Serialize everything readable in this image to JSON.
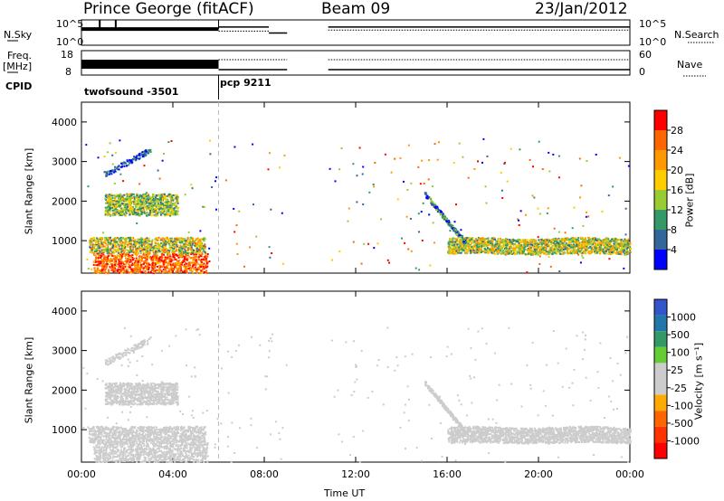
{
  "header": {
    "station": "Prince George (fitACF)",
    "beam": "Beam 09",
    "date": "23/Jan/2012"
  },
  "left_labels": {
    "nsky": "N.Sky",
    "freq_line1": "Freq.",
    "freq_line2": "[MHz]",
    "cpid": "CPID"
  },
  "right_labels": {
    "nsearch": "N.Search",
    "nave": "Nave"
  },
  "cpid_labels": [
    "twofsound -3501",
    "pcp 9211"
  ],
  "chart_data": [
    {
      "type": "line",
      "name": "noise",
      "y_ticks_left": [
        "10^5",
        "10^0"
      ],
      "y_ticks_right": [
        "10^5",
        "10^0"
      ],
      "series": [
        {
          "id": "nsky",
          "segments": [
            [
              0.0,
              6.0,
              3.2
            ],
            [
              6.0,
              8.2,
              3.6
            ],
            [
              8.2,
              9.0,
              2.4
            ],
            [
              10.8,
              24.0,
              3.6
            ]
          ]
        },
        {
          "id": "nsearch",
          "segments": [
            [
              6.0,
              8.2,
              2.8
            ],
            [
              10.8,
              24.0,
              3.0
            ]
          ]
        }
      ]
    },
    {
      "type": "line",
      "name": "frequency-nave",
      "y_ticks_left": [
        "18",
        "8"
      ],
      "y_ticks_right": [
        "60",
        "0"
      ],
      "series": [
        {
          "id": "freq",
          "segments": [
            [
              0.0,
              6.0,
              13.0
            ],
            [
              6.0,
              9.0,
              10.0
            ],
            [
              10.8,
              24.0,
              10.0
            ]
          ]
        },
        {
          "id": "nave",
          "segments": [
            [
              6.0,
              9.0,
              35.0
            ],
            [
              10.8,
              24.0,
              35.0
            ]
          ]
        }
      ]
    },
    {
      "type": "heatmap",
      "name": "power",
      "xlim": [
        0,
        24
      ],
      "ylim": [
        180,
        4500
      ],
      "y_ticks": [
        "4000",
        "3000",
        "2000",
        "1000"
      ],
      "ylabel": "Slant Range [km]",
      "colorbar_label": "Power [dB]",
      "colorbar_ticks": [
        "28",
        "24",
        "20",
        "16",
        "12",
        "8",
        "4"
      ],
      "colorbar_colors": [
        "#ff0000",
        "#ff6600",
        "#ff9900",
        "#ffcc00",
        "#99cc33",
        "#339966",
        "#336699",
        "#0000ff"
      ],
      "regions": [
        {
          "t0": 0.5,
          "t1": 5.5,
          "r0": 200,
          "r1": 700,
          "level": 0.9
        },
        {
          "t0": 0.3,
          "t1": 5.4,
          "r0": 700,
          "r1": 1100,
          "level": 0.6
        },
        {
          "t0": 1.0,
          "t1": 4.2,
          "r0": 1650,
          "r1": 2200,
          "level": 0.45
        },
        {
          "t0": 16.0,
          "t1": 24.0,
          "r0": 650,
          "r1": 1100,
          "level": 0.55
        }
      ]
    },
    {
      "type": "heatmap",
      "name": "velocity",
      "xlim": [
        0,
        24
      ],
      "ylim": [
        180,
        4500
      ],
      "y_ticks": [
        "4000",
        "3000",
        "2000",
        "1000"
      ],
      "ylabel": "Slant Range [km]",
      "colorbar_label": "Velocity [m s⁻¹]",
      "colorbar_ticks": [
        "1000",
        "500",
        "100",
        "25",
        "-25",
        "-100",
        "-500",
        "-1000"
      ],
      "colorbar_colors": [
        "#3355cc",
        "#2277aa",
        "#339966",
        "#66cc33",
        "#cccccc",
        "#cccccc",
        "#ffaa00",
        "#ff6600",
        "#ff3300",
        "#ff0000"
      ],
      "x_ticks": [
        "00:00",
        "04:00",
        "08:00",
        "12:00",
        "16:00",
        "20:00",
        "00:00"
      ],
      "xlabel": "Time UT"
    }
  ]
}
